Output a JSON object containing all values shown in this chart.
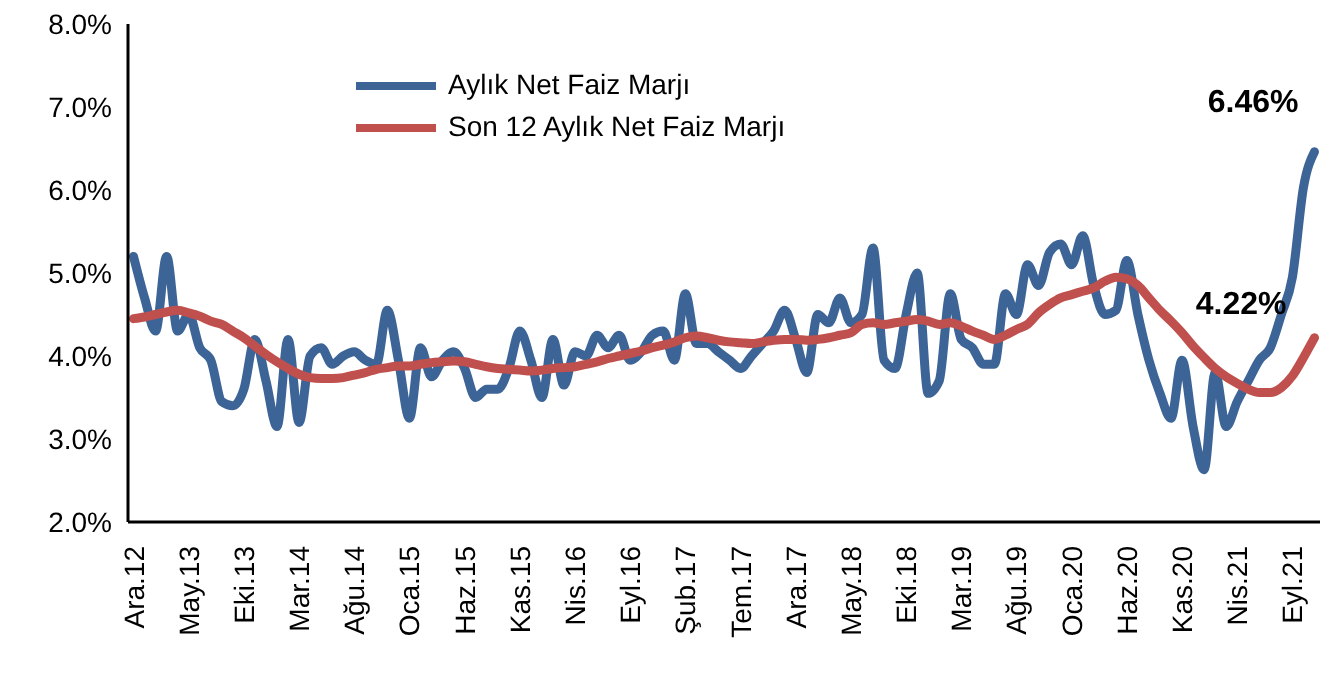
{
  "chart_data": {
    "type": "line",
    "categories": [
      "Ara.12",
      null,
      null,
      null,
      null,
      "May.13",
      null,
      null,
      null,
      null,
      "Eki.13",
      null,
      null,
      null,
      null,
      "Mar.14",
      null,
      null,
      null,
      null,
      "Ağu.14",
      null,
      null,
      null,
      null,
      "Oca.15",
      null,
      null,
      null,
      null,
      "Haz.15",
      null,
      null,
      null,
      null,
      "Kas.15",
      null,
      null,
      null,
      null,
      "Nis.16",
      null,
      null,
      null,
      null,
      "Eyl.16",
      null,
      null,
      null,
      null,
      "Şub.17",
      null,
      null,
      null,
      null,
      "Tem.17",
      null,
      null,
      null,
      null,
      "Ara.17",
      null,
      null,
      null,
      null,
      "May.18",
      null,
      null,
      null,
      null,
      "Eki.18",
      null,
      null,
      null,
      null,
      "Mar.19",
      null,
      null,
      null,
      null,
      "Ağu.19",
      null,
      null,
      null,
      null,
      "Oca.20",
      null,
      null,
      null,
      null,
      "Haz.20",
      null,
      null,
      null,
      null,
      "Kas.20",
      null,
      null,
      null,
      null,
      "Nis.21",
      null,
      null,
      null,
      null,
      "Eyl.21",
      null,
      null
    ],
    "series": [
      {
        "name": "Aylık Net Faiz Marjı",
        "color": "#3d6496",
        "values": [
          5.2,
          4.7,
          4.3,
          5.2,
          4.3,
          4.5,
          4.1,
          3.95,
          3.45,
          3.4,
          3.6,
          4.2,
          3.7,
          3.15,
          4.2,
          3.2,
          4.0,
          4.1,
          3.9,
          4.0,
          4.05,
          3.95,
          3.9,
          4.55,
          3.95,
          3.25,
          4.1,
          3.75,
          3.95,
          4.05,
          3.85,
          3.5,
          3.6,
          3.6,
          3.85,
          4.3,
          3.95,
          3.5,
          4.2,
          3.65,
          4.05,
          4.0,
          4.25,
          4.1,
          4.25,
          3.95,
          4.05,
          4.25,
          4.3,
          3.95,
          4.75,
          4.15,
          4.15,
          4.05,
          3.95,
          3.85,
          4.0,
          4.15,
          4.3,
          4.55,
          4.2,
          3.8,
          4.5,
          4.4,
          4.7,
          4.4,
          4.5,
          5.3,
          3.95,
          3.85,
          4.5,
          5.0,
          3.55,
          3.7,
          4.75,
          4.2,
          4.1,
          3.9,
          3.9,
          4.75,
          4.5,
          5.1,
          4.85,
          5.25,
          5.35,
          5.1,
          5.45,
          4.85,
          4.5,
          4.55,
          5.15,
          4.5,
          3.95,
          3.55,
          3.25,
          3.95,
          3.15,
          2.63,
          3.8,
          3.15,
          3.45,
          3.7,
          3.95,
          4.1,
          4.5,
          4.95,
          6.03,
          6.46
        ],
        "value_labels": [
          null,
          null,
          null,
          null,
          null,
          null,
          null,
          null,
          null,
          null,
          null,
          null,
          null,
          null,
          null,
          null,
          null,
          null,
          null,
          null,
          null,
          null,
          null,
          null,
          null,
          null,
          null,
          null,
          null,
          null,
          null,
          null,
          null,
          null,
          null,
          null,
          null,
          null,
          null,
          null,
          null,
          null,
          null,
          null,
          null,
          null,
          null,
          null,
          null,
          null,
          null,
          null,
          null,
          null,
          null,
          null,
          null,
          null,
          null,
          null,
          null,
          null,
          null,
          null,
          null,
          null,
          null,
          null,
          null,
          null,
          null,
          null,
          null,
          null,
          null,
          null,
          null,
          null,
          null,
          null,
          null,
          null,
          null,
          null,
          null,
          null,
          null,
          null,
          null,
          null,
          null,
          null,
          null,
          null,
          null,
          null,
          null,
          null,
          null,
          null,
          null,
          null,
          null,
          null,
          null,
          null,
          null,
          "6.46%"
        ]
      },
      {
        "name": "Son 12 Aylık Net Faiz Marjı",
        "color": "#c0504d",
        "values": [
          4.45,
          4.47,
          4.5,
          4.53,
          4.55,
          4.52,
          4.48,
          4.42,
          4.38,
          4.3,
          4.22,
          4.12,
          4.02,
          3.93,
          3.85,
          3.78,
          3.74,
          3.73,
          3.73,
          3.74,
          3.77,
          3.8,
          3.84,
          3.86,
          3.88,
          3.88,
          3.9,
          3.92,
          3.93,
          3.94,
          3.93,
          3.9,
          3.87,
          3.85,
          3.84,
          3.83,
          3.82,
          3.83,
          3.85,
          3.86,
          3.87,
          3.9,
          3.93,
          3.97,
          4.0,
          4.03,
          4.06,
          4.1,
          4.13,
          4.17,
          4.22,
          4.24,
          4.22,
          4.19,
          4.17,
          4.16,
          4.15,
          4.17,
          4.19,
          4.2,
          4.2,
          4.19,
          4.2,
          4.22,
          4.25,
          4.28,
          4.38,
          4.4,
          4.38,
          4.4,
          4.42,
          4.44,
          4.42,
          4.38,
          4.4,
          4.36,
          4.3,
          4.25,
          4.2,
          4.25,
          4.32,
          4.38,
          4.52,
          4.62,
          4.7,
          4.74,
          4.78,
          4.82,
          4.9,
          4.95,
          4.93,
          4.85,
          4.7,
          4.55,
          4.42,
          4.28,
          4.12,
          3.98,
          3.85,
          3.75,
          3.67,
          3.6,
          3.56,
          3.56,
          3.62,
          3.76,
          3.98,
          4.22
        ],
        "value_labels": [
          null,
          null,
          null,
          null,
          null,
          null,
          null,
          null,
          null,
          null,
          null,
          null,
          null,
          null,
          null,
          null,
          null,
          null,
          null,
          null,
          null,
          null,
          null,
          null,
          null,
          null,
          null,
          null,
          null,
          null,
          null,
          null,
          null,
          null,
          null,
          null,
          null,
          null,
          null,
          null,
          null,
          null,
          null,
          null,
          null,
          null,
          null,
          null,
          null,
          null,
          null,
          null,
          null,
          null,
          null,
          null,
          null,
          null,
          null,
          null,
          null,
          null,
          null,
          null,
          null,
          null,
          null,
          null,
          null,
          null,
          null,
          null,
          null,
          null,
          null,
          null,
          null,
          null,
          null,
          null,
          null,
          null,
          null,
          null,
          null,
          null,
          null,
          null,
          null,
          null,
          null,
          null,
          null,
          null,
          null,
          null,
          null,
          null,
          null,
          null,
          null,
          null,
          null,
          null,
          null,
          null,
          null,
          "4.22%"
        ]
      }
    ],
    "ylim": [
      2,
      8
    ],
    "yticks": [
      {
        "value": 2,
        "label": "2.0%"
      },
      {
        "value": 3,
        "label": "3.0%"
      },
      {
        "value": 4,
        "label": "4.0%"
      },
      {
        "value": 5,
        "label": "5.0%"
      },
      {
        "value": 6,
        "label": "6.0%"
      },
      {
        "value": 7,
        "label": "7.0%"
      },
      {
        "value": 8,
        "label": "8.0%"
      }
    ],
    "grid": false,
    "legend": "top left",
    "marker": "none",
    "line_style": "solid"
  }
}
